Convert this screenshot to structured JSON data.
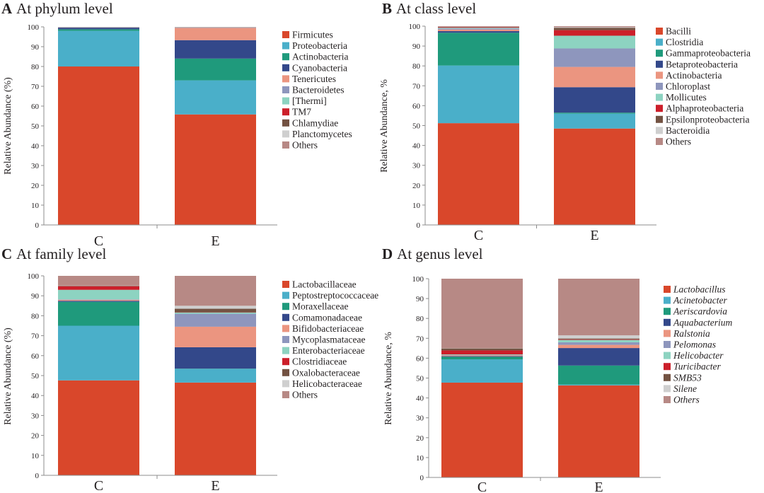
{
  "colors": {
    "red": "#d9472b",
    "blue": "#4aafc9",
    "green": "#1f9a7c",
    "navy": "#33488a",
    "salmon": "#eb9580",
    "lavender": "#8e96bd",
    "mint": "#8dd3c1",
    "crimson": "#cc1f2a",
    "brown": "#735242",
    "silver": "#cfcfcf",
    "mauve": "#b78985"
  },
  "chart_data": [
    {
      "type": "bar",
      "stacked": true,
      "panel_letter": "A",
      "title": "At phylum level",
      "ylabel": "Relative Abundance (%)",
      "ylim": [
        0,
        100
      ],
      "yticks": [
        0,
        10,
        20,
        30,
        40,
        50,
        60,
        70,
        80,
        90,
        100
      ],
      "categories": [
        "C",
        "E"
      ],
      "legend_italic": false,
      "series": [
        {
          "name": "Firmicutes",
          "color": "red",
          "values": [
            80.0,
            55.8
          ]
        },
        {
          "name": "Proteobacteria",
          "color": "blue",
          "values": [
            18.0,
            17.2
          ]
        },
        {
          "name": "Actinobacteria",
          "color": "green",
          "values": [
            0.8,
            11.0
          ]
        },
        {
          "name": "Cyanobacteria",
          "color": "navy",
          "values": [
            0.8,
            9.3
          ]
        },
        {
          "name": "Tenericutes",
          "color": "salmon",
          "values": [
            0.1,
            6.2
          ]
        },
        {
          "name": "Bacteroidetes",
          "color": "lavender",
          "values": [
            0.1,
            0.2
          ]
        },
        {
          "name": "[Thermi]",
          "color": "mint",
          "values": [
            0.1,
            0.1
          ]
        },
        {
          "name": "TM7",
          "color": "crimson",
          "values": [
            0.02,
            0.05
          ]
        },
        {
          "name": "Chlamydiae",
          "color": "brown",
          "values": [
            0.02,
            0.05
          ]
        },
        {
          "name": "Planctomycetes",
          "color": "silver",
          "values": [
            0.02,
            0.05
          ]
        },
        {
          "name": "Others",
          "color": "mauve",
          "values": [
            0.04,
            0.05
          ]
        }
      ]
    },
    {
      "type": "bar",
      "stacked": true,
      "panel_letter": "B",
      "title": "At class level",
      "ylabel": "Relative Abundance, %",
      "ylim": [
        0,
        100
      ],
      "yticks": [
        0,
        10,
        20,
        30,
        40,
        50,
        60,
        70,
        80,
        90,
        100
      ],
      "categories": [
        "C",
        "E"
      ],
      "legend_italic": false,
      "series": [
        {
          "name": "Bacilli",
          "color": "red",
          "values": [
            51.2,
            48.5
          ]
        },
        {
          "name": "Clostridia",
          "color": "blue",
          "values": [
            29.0,
            7.5
          ]
        },
        {
          "name": "Gammaproteobacteria",
          "color": "green",
          "values": [
            16.5,
            0.5
          ]
        },
        {
          "name": "Betaproteobacteria",
          "color": "navy",
          "values": [
            0.8,
            12.8
          ]
        },
        {
          "name": "Actinobacteria",
          "color": "salmon",
          "values": [
            0.8,
            10.2
          ]
        },
        {
          "name": "Chloroplast",
          "color": "lavender",
          "values": [
            0.5,
            9.3
          ]
        },
        {
          "name": "Mollicutes",
          "color": "mint",
          "values": [
            0.4,
            6.4
          ]
        },
        {
          "name": "Alphaproteobacteria",
          "color": "crimson",
          "values": [
            0.3,
            2.8
          ]
        },
        {
          "name": "Epsilonproteobacteria",
          "color": "brown",
          "values": [
            0.2,
            1.2
          ]
        },
        {
          "name": "Bacteroidia",
          "color": "silver",
          "values": [
            0.1,
            0.3
          ]
        },
        {
          "name": "Others",
          "color": "mauve",
          "values": [
            0.2,
            0.5
          ]
        }
      ]
    },
    {
      "type": "bar",
      "stacked": true,
      "panel_letter": "C",
      "title": "At family level",
      "ylabel": "Relative Abundance (%)",
      "ylim": [
        0,
        100
      ],
      "yticks": [
        0,
        10,
        20,
        30,
        40,
        50,
        60,
        70,
        80,
        90,
        100
      ],
      "categories": [
        "C",
        "E"
      ],
      "legend_italic": false,
      "series": [
        {
          "name": "Lactobacillaceae",
          "color": "red",
          "values": [
            47.6,
            46.5
          ]
        },
        {
          "name": "Peptostreptococcaceae",
          "color": "blue",
          "values": [
            27.4,
            6.9
          ]
        },
        {
          "name": "Moraxellaceae",
          "color": "green",
          "values": [
            12.0,
            0.1
          ]
        },
        {
          "name": "Comamonadaceae",
          "color": "navy",
          "values": [
            0.5,
            10.7
          ]
        },
        {
          "name": "Bifidobacteriaceae",
          "color": "salmon",
          "values": [
            0.5,
            10.3
          ]
        },
        {
          "name": "Mycoplasmataceae",
          "color": "lavender",
          "values": [
            0.2,
            6.5
          ]
        },
        {
          "name": "Enterobacteriaceae",
          "color": "mint",
          "values": [
            4.8,
            0.6
          ]
        },
        {
          "name": "Clostridiaceae",
          "color": "crimson",
          "values": [
            1.8,
            0.1
          ]
        },
        {
          "name": "Oxalobacteraceae",
          "color": "brown",
          "values": [
            0.2,
            1.8
          ]
        },
        {
          "name": "Helicobacteraceae",
          "color": "silver",
          "values": [
            0.1,
            1.5
          ]
        },
        {
          "name": "Others",
          "color": "mauve",
          "values": [
            4.9,
            15.0
          ]
        }
      ]
    },
    {
      "type": "bar",
      "stacked": true,
      "panel_letter": "D",
      "title": "At genus level",
      "ylabel": "Relative Abundance, %",
      "ylim": [
        0,
        100
      ],
      "yticks": [
        0,
        10,
        20,
        30,
        40,
        50,
        60,
        70,
        80,
        90,
        100
      ],
      "categories": [
        "C",
        "E"
      ],
      "legend_italic": true,
      "series": [
        {
          "name": "Lactobacillus",
          "color": "red",
          "values": [
            47.7,
            46.3
          ]
        },
        {
          "name": "Acinetobacter",
          "color": "blue",
          "values": [
            11.7,
            0.4
          ]
        },
        {
          "name": "Aeriscardovia",
          "color": "green",
          "values": [
            1.3,
            9.6
          ]
        },
        {
          "name": "Aquabacterium",
          "color": "navy",
          "values": [
            0.3,
            8.8
          ]
        },
        {
          "name": "Ralstonia",
          "color": "salmon",
          "values": [
            0.4,
            1.6
          ]
        },
        {
          "name": "Pelomonas",
          "color": "lavender",
          "values": [
            0.2,
            1.3
          ]
        },
        {
          "name": "Helicobacter",
          "color": "mint",
          "values": [
            0.3,
            1.2
          ]
        },
        {
          "name": "Turicibacter",
          "color": "crimson",
          "values": [
            2.0,
            0.3
          ]
        },
        {
          "name": "SMB53",
          "color": "brown",
          "values": [
            1.0,
            0.4
          ]
        },
        {
          "name": "Silene",
          "color": "silver",
          "values": [
            0.1,
            1.6
          ]
        },
        {
          "name": "Others",
          "color": "mauve",
          "values": [
            35.0,
            28.5
          ]
        }
      ]
    }
  ]
}
